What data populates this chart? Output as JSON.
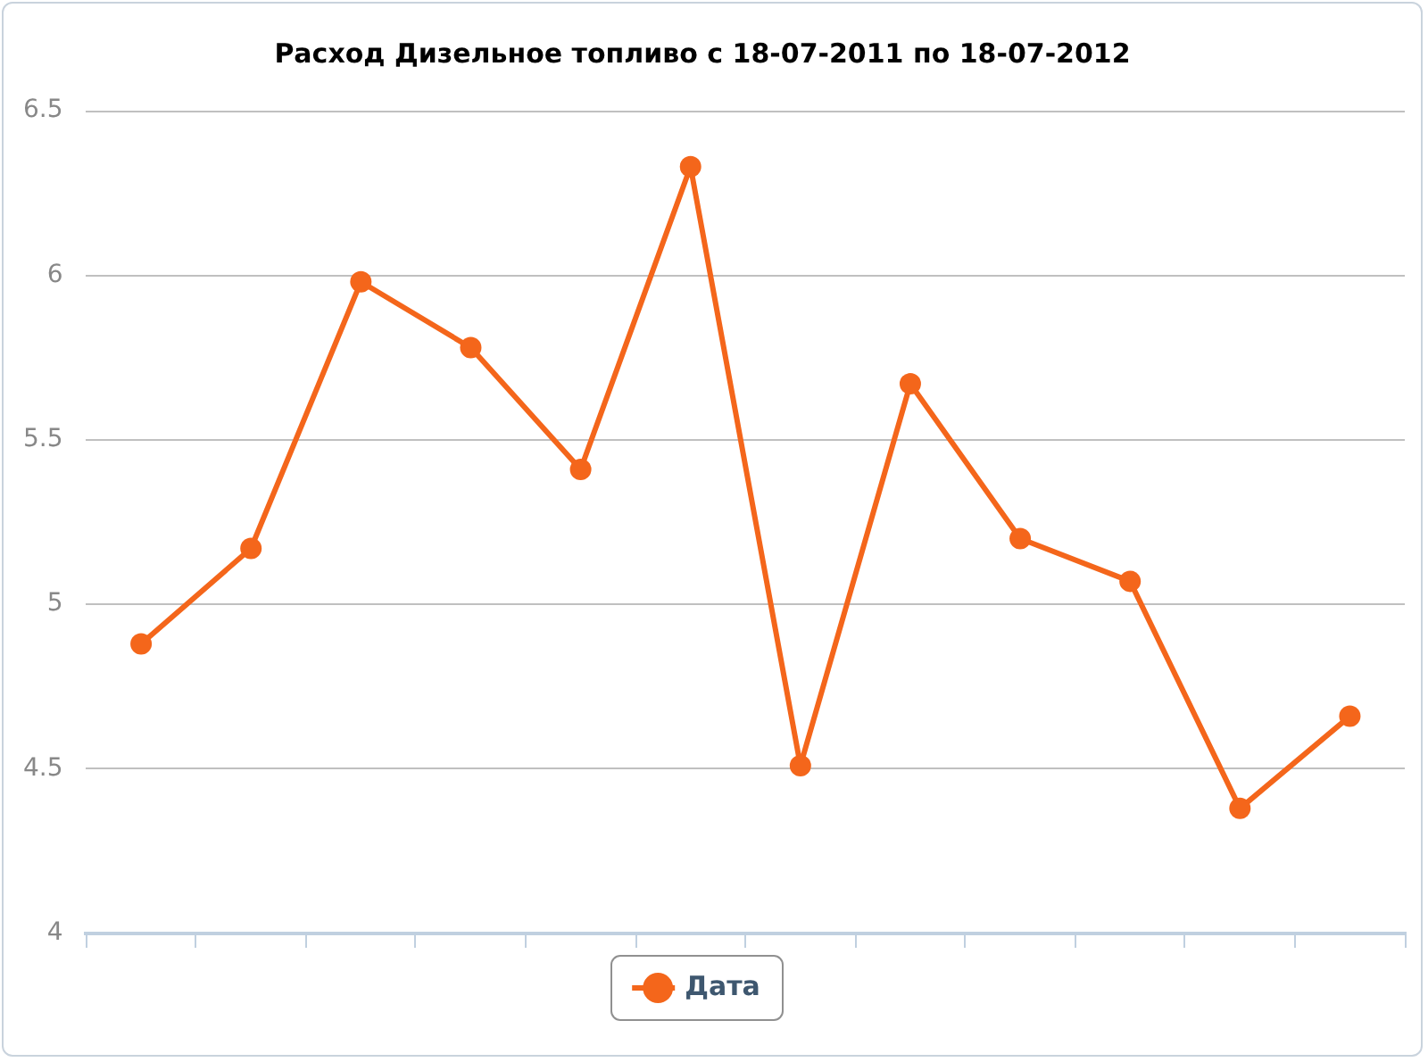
{
  "chart_data": {
    "type": "line",
    "title": "Расход Дизельное топливо с 18-07-2011 по 18-07-2012",
    "categories": [
      null,
      null,
      null,
      null,
      null,
      null,
      null,
      null,
      null,
      null,
      null,
      null
    ],
    "series": [
      {
        "name": "Дата",
        "color": "#f4661b",
        "values": [
          4.88,
          5.17,
          5.98,
          5.78,
          5.41,
          6.33,
          4.51,
          5.67,
          5.2,
          5.07,
          4.38,
          4.66
        ]
      }
    ],
    "ylim": [
      4,
      6.5
    ],
    "yticks": [
      4,
      4.5,
      5,
      5.5,
      6,
      6.5
    ],
    "grid": "y",
    "legend": "bottom",
    "marker": "circle",
    "line_style": "solid",
    "tick_labels": "y"
  }
}
